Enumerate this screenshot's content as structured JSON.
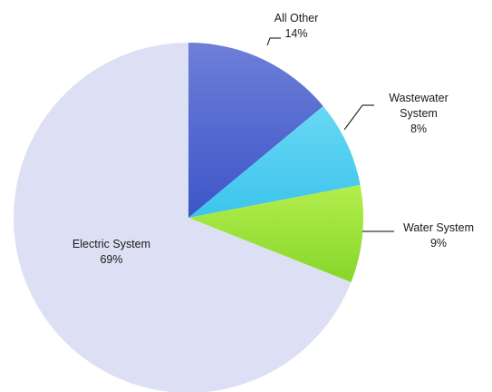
{
  "chart_data": {
    "type": "pie",
    "slices": [
      {
        "label": "All Other",
        "value": 14,
        "pct_text": "14%",
        "color_top": "#6d7fd8",
        "color_bottom": "#3d55c8"
      },
      {
        "label": "Wastewater System",
        "label_lines": [
          "Wastewater",
          "System"
        ],
        "value": 8,
        "pct_text": "8%",
        "color_top": "#68d8f3",
        "color_bottom": "#3cc4ec"
      },
      {
        "label": "Water System",
        "value": 9,
        "pct_text": "9%",
        "color_top": "#b4ee4c",
        "color_bottom": "#86d62c"
      },
      {
        "label": "Electric System",
        "value": 69,
        "pct_text": "69%",
        "color_top": "#dde0f4",
        "color_bottom": "#dde0f4"
      }
    ],
    "start_angle_deg": 0,
    "direction": "clockwise",
    "legend": "none"
  }
}
